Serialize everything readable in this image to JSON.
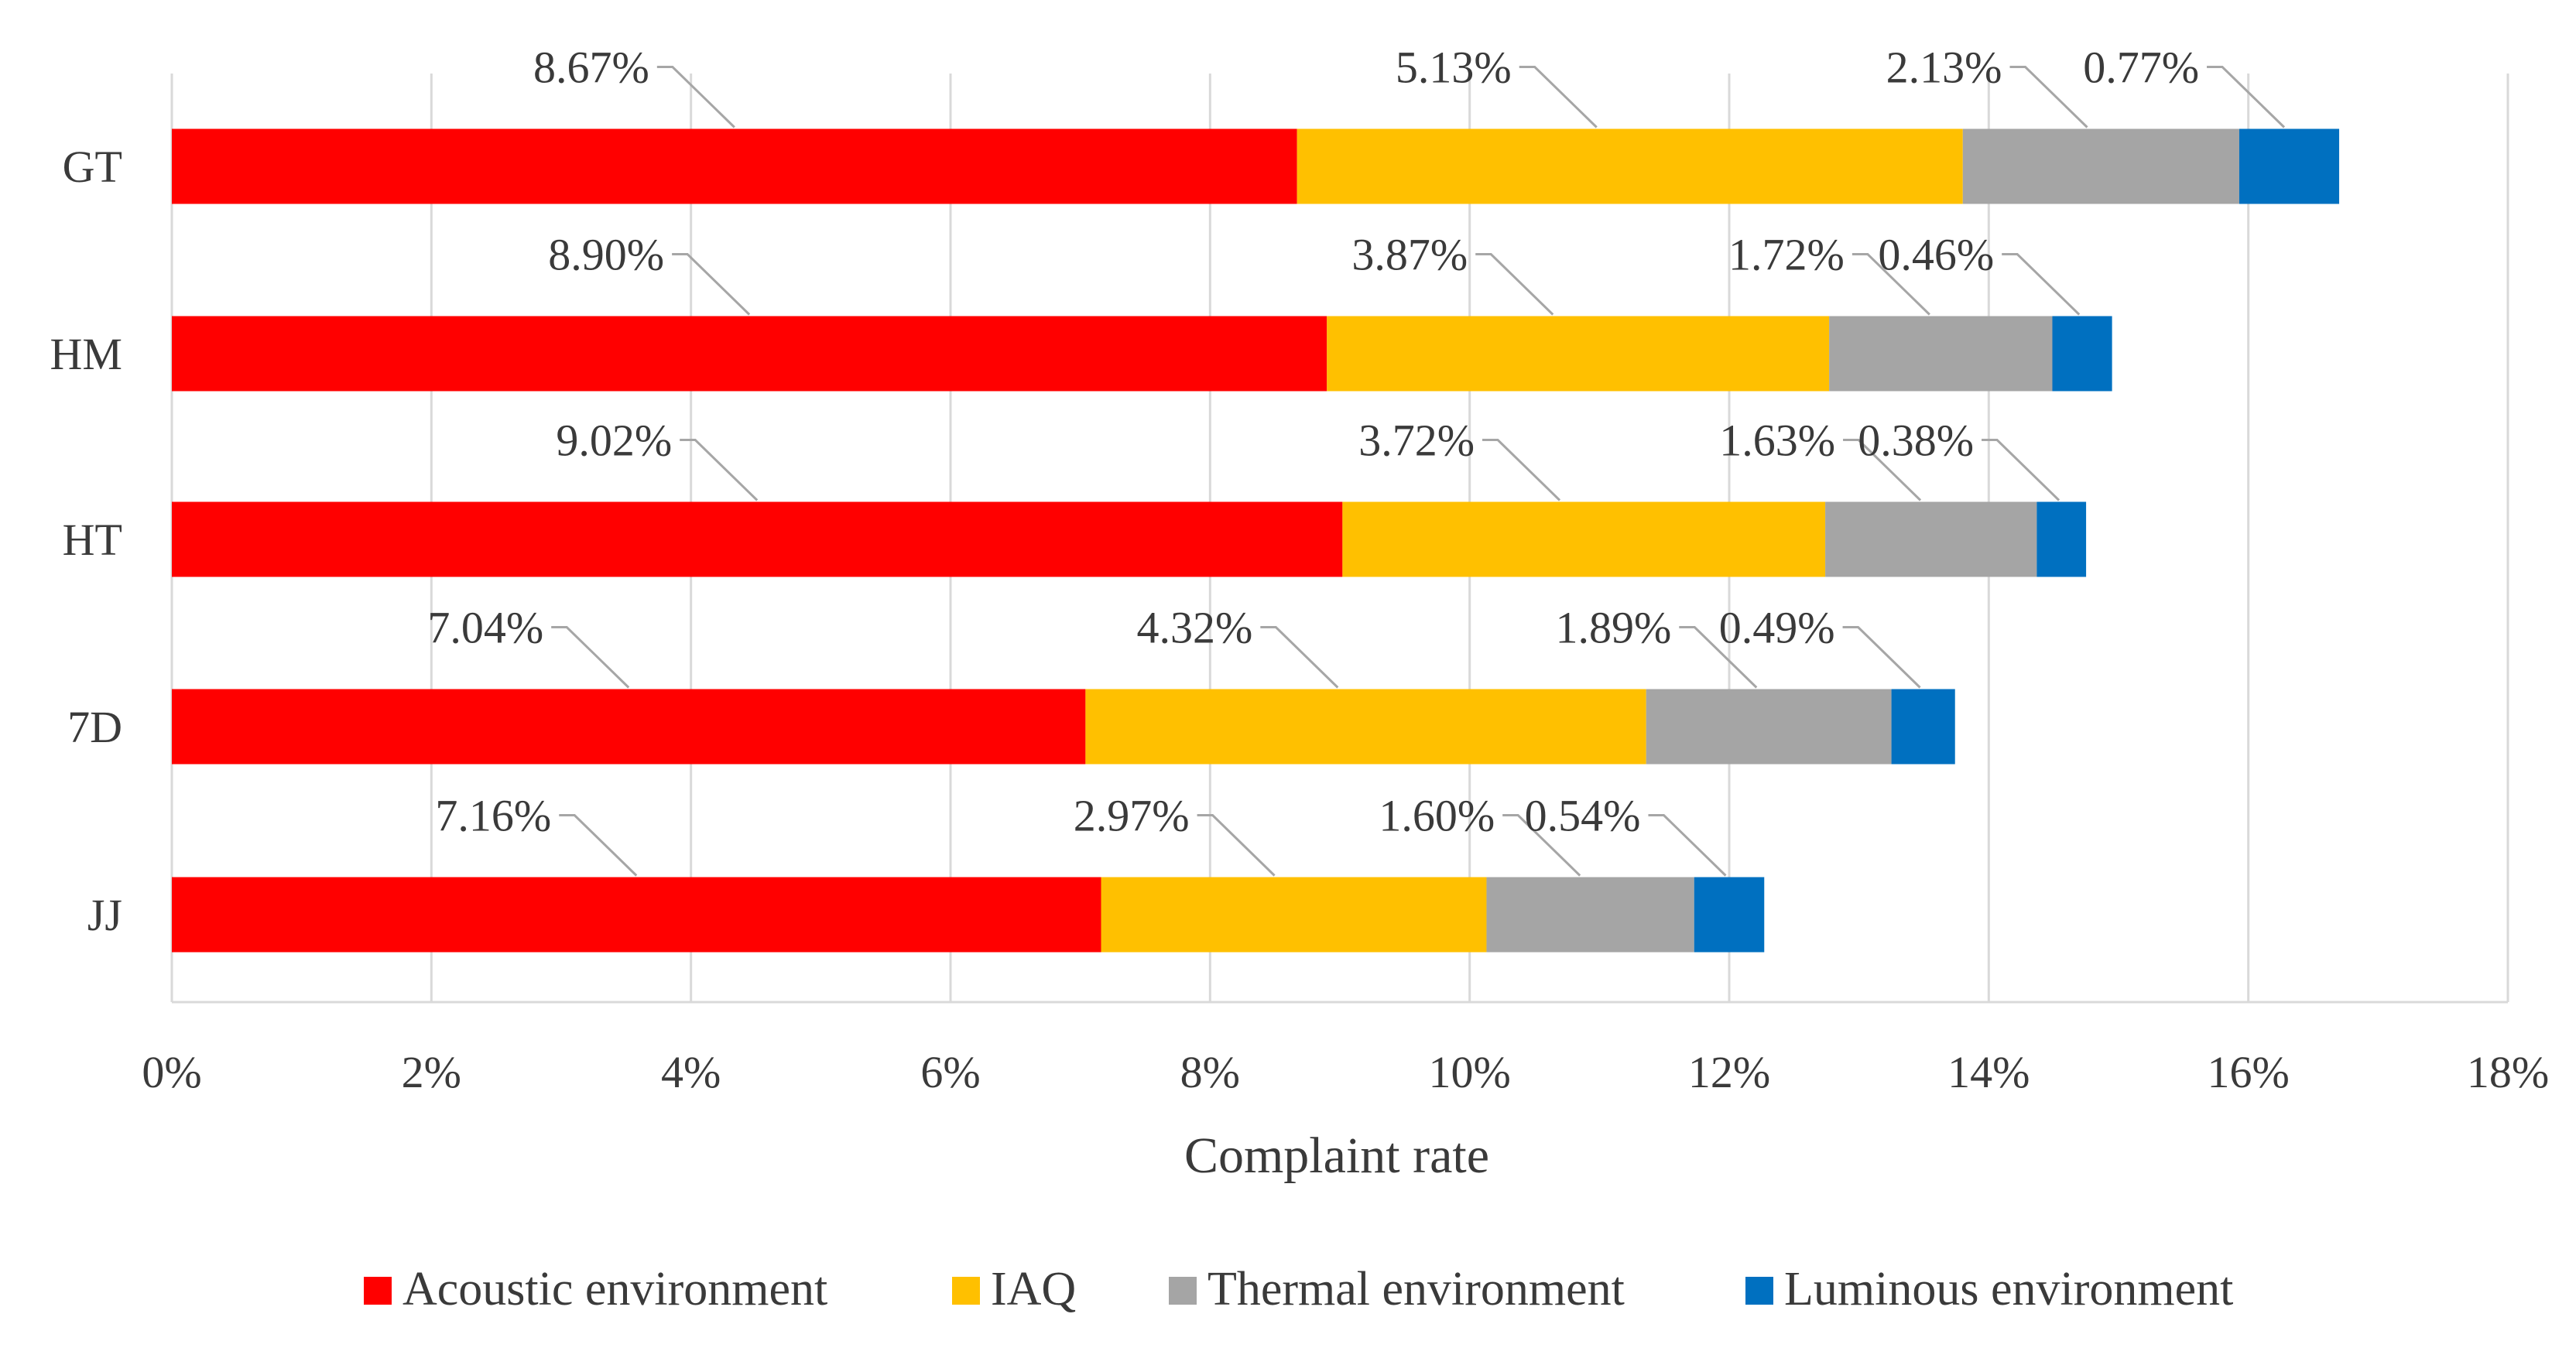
{
  "chart_data": {
    "type": "bar",
    "orientation": "horizontal",
    "stacked": true,
    "categories": [
      "GT",
      "HM",
      "HT",
      "7D",
      "JJ"
    ],
    "series": [
      {
        "name": "Acoustic environment",
        "color": "#ff0000",
        "values": [
          8.67,
          8.9,
          9.02,
          7.04,
          7.16
        ],
        "labels": [
          "8.67%",
          "8.90%",
          "9.02%",
          "7.04%",
          "7.16%"
        ]
      },
      {
        "name": "IAQ",
        "color": "#ffc000",
        "values": [
          5.13,
          3.87,
          3.72,
          4.32,
          2.97
        ],
        "labels": [
          "5.13%",
          "3.87%",
          "3.72%",
          "4.32%",
          "2.97%"
        ]
      },
      {
        "name": "Thermal environment",
        "color": "#a5a5a5",
        "values": [
          2.13,
          1.72,
          1.63,
          1.89,
          1.6
        ],
        "labels": [
          "2.13%",
          "1.72%",
          "1.63%",
          "1.89%",
          "1.60%"
        ]
      },
      {
        "name": "Luminous environment",
        "color": "#0070c0",
        "values": [
          0.77,
          0.46,
          0.38,
          0.49,
          0.54
        ],
        "labels": [
          "0.77%",
          "0.46%",
          "0.38%",
          "0.49%",
          "0.54%"
        ]
      }
    ],
    "xlabel": "Complaint rate",
    "ylabel": "",
    "xlim": [
      0,
      18
    ],
    "xticks": [
      0,
      2,
      4,
      6,
      8,
      10,
      12,
      14,
      16,
      18
    ],
    "xtick_labels": [
      "0%",
      "2%",
      "4%",
      "6%",
      "8%",
      "10%",
      "12%",
      "14%",
      "16%",
      "18%"
    ],
    "grid": true,
    "legend_position": "bottom"
  }
}
